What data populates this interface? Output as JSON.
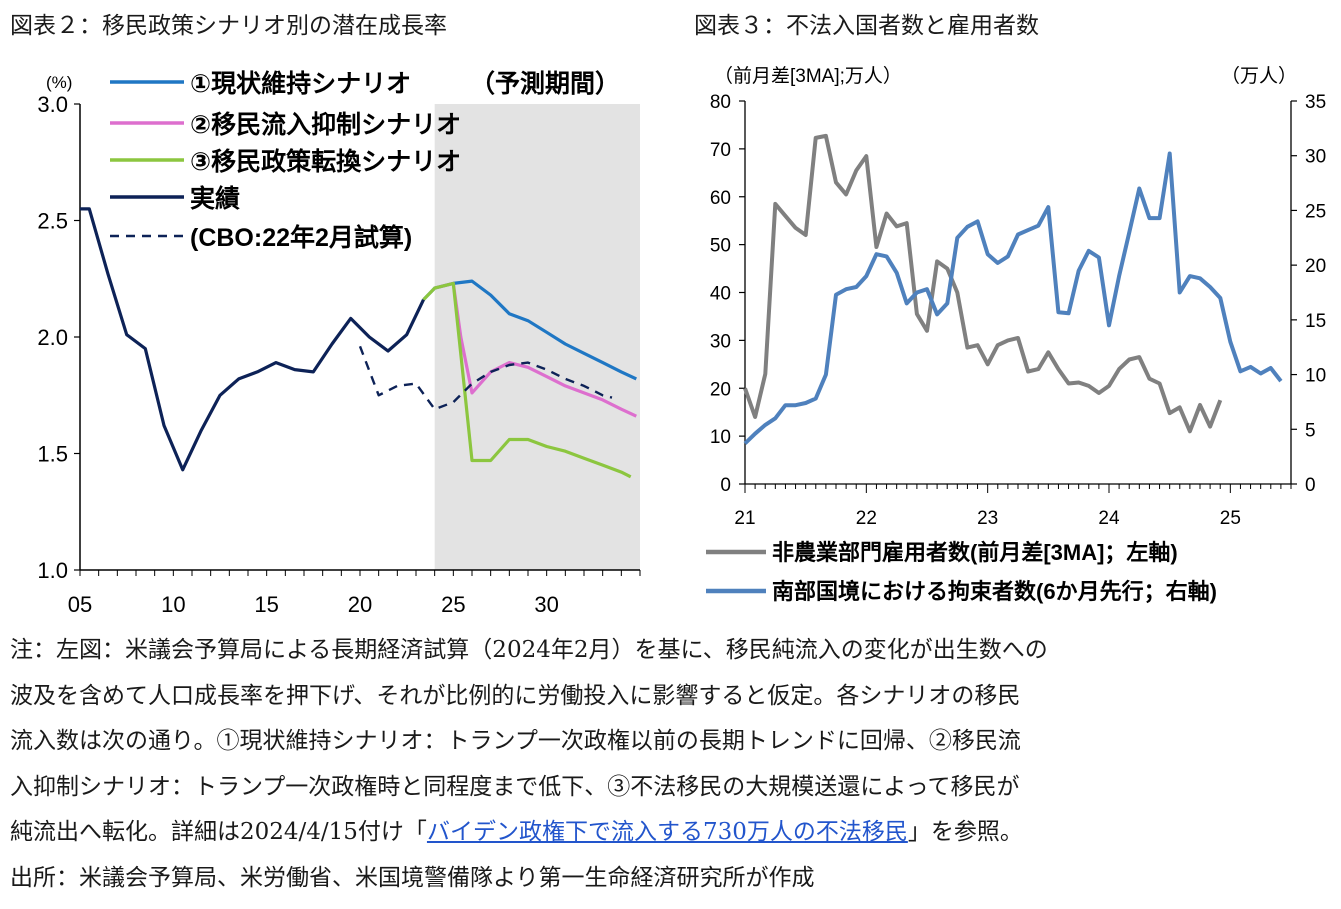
{
  "titles": {
    "left": "図表２：移民政策シナリオ別の潜在成長率",
    "right": "図表３：不法入国者数と雇用者数"
  },
  "chart_data": [
    {
      "type": "line",
      "id": "left",
      "title": "図表２：移民政策シナリオ別の潜在成長率",
      "ylabel": "(%)",
      "ylim": [
        1.0,
        3.0
      ],
      "yticks": [
        "1.0",
        "1.5",
        "2.0",
        "2.5",
        "3.0"
      ],
      "xlim": [
        2005,
        2035
      ],
      "xticks": [
        {
          "value": 2005,
          "label": "05"
        },
        {
          "value": 2010,
          "label": "10"
        },
        {
          "value": 2015,
          "label": "15"
        },
        {
          "value": 2020,
          "label": "20"
        },
        {
          "value": 2025,
          "label": "25"
        },
        {
          "value": 2030,
          "label": "30"
        }
      ],
      "shaded_region": {
        "label": "（予測期間）",
        "from": 2024,
        "to": 2035
      },
      "series": [
        {
          "name": "①現状維持シナリオ",
          "color": "#1f77c4",
          "dash": false,
          "points": [
            [
              2023.4,
              2.16
            ],
            [
              2024,
              2.21
            ],
            [
              2025,
              2.23
            ],
            [
              2026,
              2.24
            ],
            [
              2027,
              2.18
            ],
            [
              2028,
              2.1
            ],
            [
              2029,
              2.07
            ],
            [
              2030,
              2.02
            ],
            [
              2031,
              1.97
            ],
            [
              2032,
              1.93
            ],
            [
              2033,
              1.89
            ],
            [
              2034,
              1.85
            ],
            [
              2034.8,
              1.82
            ]
          ]
        },
        {
          "name": "②移民流入抑制シナリオ",
          "color": "#dd6fce",
          "dash": false,
          "points": [
            [
              2024,
              2.21
            ],
            [
              2025,
              2.23
            ],
            [
              2025.4,
              2.0
            ],
            [
              2026,
              1.76
            ],
            [
              2027,
              1.85
            ],
            [
              2028,
              1.89
            ],
            [
              2029,
              1.87
            ],
            [
              2030,
              1.83
            ],
            [
              2031,
              1.79
            ],
            [
              2032,
              1.76
            ],
            [
              2033,
              1.73
            ],
            [
              2034,
              1.69
            ],
            [
              2034.8,
              1.66
            ]
          ]
        },
        {
          "name": "③移民政策転換シナリオ",
          "color": "#8cc63f",
          "dash": false,
          "points": [
            [
              2023.4,
              2.16
            ],
            [
              2024,
              2.21
            ],
            [
              2025,
              2.23
            ],
            [
              2025.5,
              1.85
            ],
            [
              2026,
              1.47
            ],
            [
              2027,
              1.47
            ],
            [
              2028,
              1.56
            ],
            [
              2029,
              1.56
            ],
            [
              2030,
              1.53
            ],
            [
              2031,
              1.51
            ],
            [
              2032,
              1.48
            ],
            [
              2033,
              1.45
            ],
            [
              2034,
              1.42
            ],
            [
              2034.5,
              1.4
            ]
          ]
        },
        {
          "name": "実績",
          "color": "#0d2257",
          "dash": false,
          "points": [
            [
              2005,
              2.55
            ],
            [
              2005.5,
              2.55
            ],
            [
              2006.5,
              2.27
            ],
            [
              2007.5,
              2.01
            ],
            [
              2008.5,
              1.95
            ],
            [
              2009.5,
              1.62
            ],
            [
              2010.5,
              1.43
            ],
            [
              2011.5,
              1.6
            ],
            [
              2012.5,
              1.75
            ],
            [
              2013.5,
              1.82
            ],
            [
              2014.5,
              1.85
            ],
            [
              2015.5,
              1.89
            ],
            [
              2016.5,
              1.86
            ],
            [
              2017.5,
              1.85
            ],
            [
              2018.5,
              1.97
            ],
            [
              2019.5,
              2.08
            ],
            [
              2020.5,
              2.0
            ],
            [
              2021.5,
              1.94
            ],
            [
              2022.5,
              2.01
            ],
            [
              2023.4,
              2.16
            ]
          ]
        },
        {
          "name": "(CBO:22年2月試算)",
          "color": "#0d2257",
          "dash": true,
          "points": [
            [
              2020,
              1.96
            ],
            [
              2021,
              1.75
            ],
            [
              2022,
              1.79
            ],
            [
              2023,
              1.8
            ],
            [
              2024,
              1.69
            ],
            [
              2025,
              1.72
            ],
            [
              2026,
              1.8
            ],
            [
              2027,
              1.85
            ],
            [
              2028,
              1.88
            ],
            [
              2029,
              1.89
            ],
            [
              2030,
              1.86
            ],
            [
              2031,
              1.82
            ],
            [
              2032,
              1.79
            ],
            [
              2033,
              1.75
            ],
            [
              2033.5,
              1.74
            ]
          ]
        }
      ]
    },
    {
      "type": "line",
      "id": "right",
      "title": "図表３：不法入国者数と雇用者数",
      "ylabel_left": "（前月差[3MA];万人）",
      "ylabel_right": "（万人）",
      "ylim_left": [
        0,
        80
      ],
      "yticks_left": [
        "0",
        "10",
        "20",
        "30",
        "40",
        "50",
        "60",
        "70",
        "80"
      ],
      "ylim_right": [
        0,
        35
      ],
      "yticks_right": [
        "0",
        "5",
        "10",
        "15",
        "20",
        "25",
        "30",
        "35"
      ],
      "xlim": [
        21,
        25.5
      ],
      "xticks": [
        "21",
        "22",
        "23",
        "24",
        "25"
      ],
      "series": [
        {
          "name": "非農業部門雇用者数(前月差[3MA]；左軸)",
          "color": "#808080",
          "axis": "left",
          "points": [
            [
              21.0,
              20
            ],
            [
              21.083,
              14
            ],
            [
              21.167,
              23
            ],
            [
              21.25,
              58.5
            ],
            [
              21.333,
              56
            ],
            [
              21.417,
              53.5
            ],
            [
              21.5,
              52
            ],
            [
              21.583,
              72.3
            ],
            [
              21.667,
              72.7
            ],
            [
              21.75,
              63
            ],
            [
              21.833,
              60.5
            ],
            [
              21.917,
              65.5
            ],
            [
              22.0,
              68.5
            ],
            [
              22.083,
              49.5
            ],
            [
              22.167,
              56.5
            ],
            [
              22.25,
              53.8
            ],
            [
              22.333,
              54.5
            ],
            [
              22.417,
              35.5
            ],
            [
              22.5,
              32
            ],
            [
              22.583,
              46.5
            ],
            [
              22.667,
              45
            ],
            [
              22.75,
              40
            ],
            [
              22.833,
              28.5
            ],
            [
              22.917,
              29
            ],
            [
              23.0,
              25
            ],
            [
              23.083,
              29
            ],
            [
              23.167,
              30
            ],
            [
              23.25,
              30.5
            ],
            [
              23.333,
              23.5
            ],
            [
              23.417,
              24
            ],
            [
              23.5,
              27.5
            ],
            [
              23.583,
              24
            ],
            [
              23.667,
              21
            ],
            [
              23.75,
              21.2
            ],
            [
              23.833,
              20.5
            ],
            [
              23.917,
              19
            ],
            [
              24.0,
              20.5
            ],
            [
              24.083,
              24
            ],
            [
              24.167,
              26
            ],
            [
              24.25,
              26.5
            ],
            [
              24.333,
              22
            ],
            [
              24.417,
              21
            ],
            [
              24.5,
              14.8
            ],
            [
              24.583,
              16
            ],
            [
              24.667,
              11
            ],
            [
              24.75,
              16.5
            ],
            [
              24.833,
              12
            ],
            [
              24.917,
              17.5
            ]
          ]
        },
        {
          "name": "南部国境における拘束者数(6か月先行；右軸)",
          "color": "#4f81bd",
          "axis": "right",
          "points": [
            [
              21.0,
              3.7
            ],
            [
              21.083,
              4.6
            ],
            [
              21.167,
              5.4
            ],
            [
              21.25,
              6.0
            ],
            [
              21.333,
              7.2
            ],
            [
              21.417,
              7.2
            ],
            [
              21.5,
              7.4
            ],
            [
              21.583,
              7.8
            ],
            [
              21.667,
              10.0
            ],
            [
              21.75,
              17.3
            ],
            [
              21.833,
              17.8
            ],
            [
              21.917,
              18.0
            ],
            [
              22.0,
              19.0
            ],
            [
              22.083,
              21.0
            ],
            [
              22.167,
              20.8
            ],
            [
              22.25,
              19.3
            ],
            [
              22.333,
              16.5
            ],
            [
              22.417,
              17.5
            ],
            [
              22.5,
              17.8
            ],
            [
              22.583,
              15.5
            ],
            [
              22.667,
              16.5
            ],
            [
              22.75,
              22.5
            ],
            [
              22.833,
              23.5
            ],
            [
              22.917,
              24.0
            ],
            [
              23.0,
              21.0
            ],
            [
              23.083,
              20.2
            ],
            [
              23.167,
              20.8
            ],
            [
              23.25,
              22.8
            ],
            [
              23.333,
              23.2
            ],
            [
              23.417,
              23.6
            ],
            [
              23.5,
              25.3
            ],
            [
              23.583,
              15.7
            ],
            [
              23.667,
              15.6
            ],
            [
              23.75,
              19.5
            ],
            [
              23.833,
              21.3
            ],
            [
              23.917,
              20.7
            ],
            [
              24.0,
              14.5
            ],
            [
              24.083,
              19.0
            ],
            [
              24.167,
              23.0
            ],
            [
              24.25,
              27.0
            ],
            [
              24.333,
              24.3
            ],
            [
              24.417,
              24.3
            ],
            [
              24.5,
              30.2
            ],
            [
              24.583,
              17.5
            ],
            [
              24.667,
              19.0
            ],
            [
              24.75,
              18.8
            ],
            [
              24.833,
              18.0
            ],
            [
              24.917,
              17.0
            ],
            [
              25.0,
              13.0
            ],
            [
              25.083,
              10.3
            ],
            [
              25.167,
              10.7
            ],
            [
              25.25,
              10.1
            ],
            [
              25.333,
              10.6
            ],
            [
              25.417,
              9.4
            ]
          ]
        }
      ]
    }
  ],
  "notes": {
    "line1": "注：左図：米議会予算局による長期経済試算（2024年2月）を基に、移民純流入の変化が出生数への",
    "line2": "波及を含めて人口成長率を押下げ、それが比例的に労働投入に影響すると仮定。各シナリオの移民",
    "line3": "流入数は次の通り。①現状維持シナリオ：トランプ一次政権以前の長期トレンドに回帰、②移民流",
    "line4": "入抑制シナリオ：トランプ一次政権時と同程度まで低下、③不法移民の大規模送還によって移民が",
    "line5_pre": "純流出へ転化。詳細は2024/4/15付け「",
    "line5_link": "バイデン政権下で流入する730万人の不法移民",
    "line5_post": "」を参照。",
    "source": "出所：米議会予算局、米労働省、米国境警備隊より第一生命経済研究所が作成"
  }
}
